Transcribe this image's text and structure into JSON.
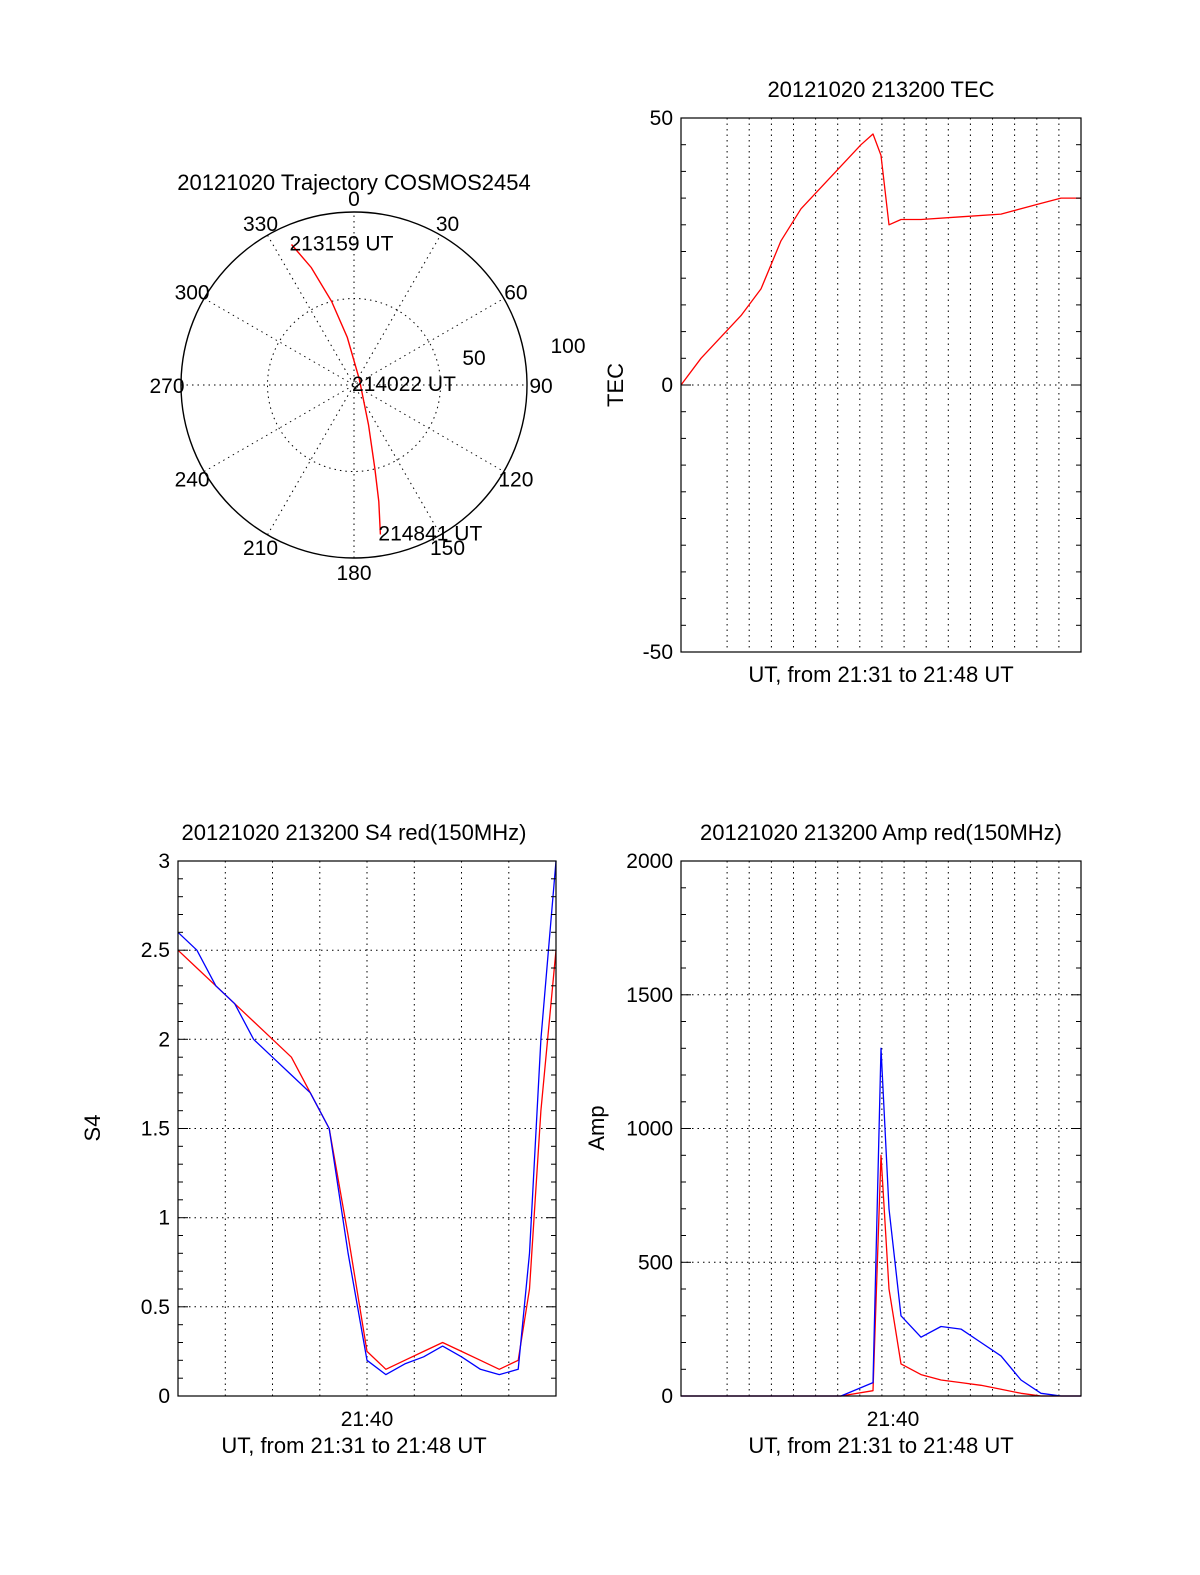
{
  "colors": {
    "red": "#ff0000",
    "blue": "#0000ff",
    "axis": "#000000"
  },
  "chart_data": [
    {
      "id": "polar",
      "type": "scatter",
      "title": "20121020 Trajectory COSMOS2454",
      "angle_labels": [
        "0",
        "30",
        "60",
        "90",
        "120",
        "150",
        "180",
        "210",
        "240",
        "270",
        "300",
        "330"
      ],
      "radius_labels": [
        "50",
        "100"
      ],
      "series": [
        {
          "color": "red",
          "points": [
            {
              "az": 336,
              "el": 10
            },
            {
              "az": 340,
              "el": 25
            },
            {
              "az": 345,
              "el": 45
            },
            {
              "az": 352,
              "el": 65
            },
            {
              "az": 45,
              "el": 86
            },
            {
              "az": 160,
              "el": 68
            },
            {
              "az": 166,
              "el": 45
            },
            {
              "az": 168,
              "el": 28
            },
            {
              "az": 170,
              "el": 11
            }
          ]
        }
      ],
      "annotations": [
        {
          "text": "213159 UT",
          "az": 336,
          "el": 10
        },
        {
          "text": "214022 UT",
          "az": 80,
          "el": 90
        },
        {
          "text": "214841 UT",
          "az": 170,
          "el": 11
        }
      ]
    },
    {
      "id": "tec",
      "type": "line",
      "title": "20121020 213200 TEC",
      "xlabel": "UT, from 21:31 to 21:48 UT",
      "ylabel": "TEC",
      "xlim": [
        0,
        1
      ],
      "ylim": [
        -50,
        50
      ],
      "yticks": [
        "50",
        "0",
        "-50"
      ],
      "grid": true,
      "series": [
        {
          "color": "red",
          "x": [
            0.0,
            0.05,
            0.1,
            0.15,
            0.2,
            0.25,
            0.3,
            0.35,
            0.4,
            0.45,
            0.48,
            0.5,
            0.52,
            0.55,
            0.6,
            0.7,
            0.8,
            0.9,
            0.95,
            1.0
          ],
          "y": [
            0,
            5,
            9,
            13,
            18,
            27,
            33,
            37,
            41,
            45,
            47,
            43,
            30,
            31,
            31,
            31.5,
            32,
            34,
            35,
            35
          ]
        }
      ]
    },
    {
      "id": "s4",
      "type": "line",
      "title": "20121020 213200 S4 red(150MHz)",
      "xlabel": "UT, from 21:31 to 21:48 UT",
      "ylabel": "S4",
      "xtick_label": "21:40",
      "xlim": [
        0,
        1
      ],
      "ylim": [
        0,
        3
      ],
      "yticks": [
        "0",
        "0.5",
        "1",
        "1.5",
        "2",
        "2.5",
        "3"
      ],
      "grid": true,
      "series": [
        {
          "color": "red",
          "x": [
            0.0,
            0.05,
            0.1,
            0.15,
            0.2,
            0.25,
            0.3,
            0.35,
            0.4,
            0.45,
            0.5,
            0.55,
            0.6,
            0.65,
            0.7,
            0.75,
            0.8,
            0.85,
            0.9,
            0.93,
            0.96,
            1.0
          ],
          "y": [
            2.5,
            2.4,
            2.3,
            2.2,
            2.1,
            2.0,
            1.9,
            1.7,
            1.5,
            0.9,
            0.25,
            0.15,
            0.2,
            0.25,
            0.3,
            0.25,
            0.2,
            0.15,
            0.2,
            0.6,
            1.6,
            2.5
          ]
        },
        {
          "color": "blue",
          "x": [
            0.0,
            0.05,
            0.1,
            0.15,
            0.2,
            0.25,
            0.3,
            0.35,
            0.4,
            0.45,
            0.5,
            0.55,
            0.6,
            0.65,
            0.7,
            0.75,
            0.8,
            0.85,
            0.9,
            0.93,
            0.96,
            1.0
          ],
          "y": [
            2.6,
            2.5,
            2.3,
            2.2,
            2.0,
            1.9,
            1.8,
            1.7,
            1.5,
            0.8,
            0.2,
            0.12,
            0.18,
            0.22,
            0.28,
            0.22,
            0.15,
            0.12,
            0.15,
            0.8,
            2.0,
            3.0
          ]
        }
      ]
    },
    {
      "id": "amp",
      "type": "line",
      "title": "20121020 213200 Amp red(150MHz)",
      "xlabel": "UT, from 21:31 to 21:48 UT",
      "ylabel": "Amp",
      "xtick_label": "21:40",
      "xlim": [
        0,
        1
      ],
      "ylim": [
        0,
        2000
      ],
      "yticks": [
        "0",
        "500",
        "1000",
        "1500",
        "2000"
      ],
      "grid": true,
      "series": [
        {
          "color": "red",
          "x": [
            0.0,
            0.2,
            0.4,
            0.48,
            0.5,
            0.52,
            0.55,
            0.6,
            0.65,
            0.7,
            0.75,
            0.8,
            0.85,
            0.9,
            0.95,
            1.0
          ],
          "y": [
            0,
            0,
            0,
            20,
            900,
            400,
            120,
            80,
            60,
            50,
            40,
            25,
            10,
            0,
            0,
            0
          ]
        },
        {
          "color": "blue",
          "x": [
            0.0,
            0.2,
            0.4,
            0.48,
            0.5,
            0.52,
            0.55,
            0.6,
            0.65,
            0.7,
            0.75,
            0.8,
            0.85,
            0.9,
            0.95,
            1.0
          ],
          "y": [
            0,
            0,
            0,
            50,
            1300,
            700,
            300,
            220,
            260,
            250,
            200,
            150,
            60,
            10,
            0,
            0
          ]
        }
      ]
    }
  ]
}
